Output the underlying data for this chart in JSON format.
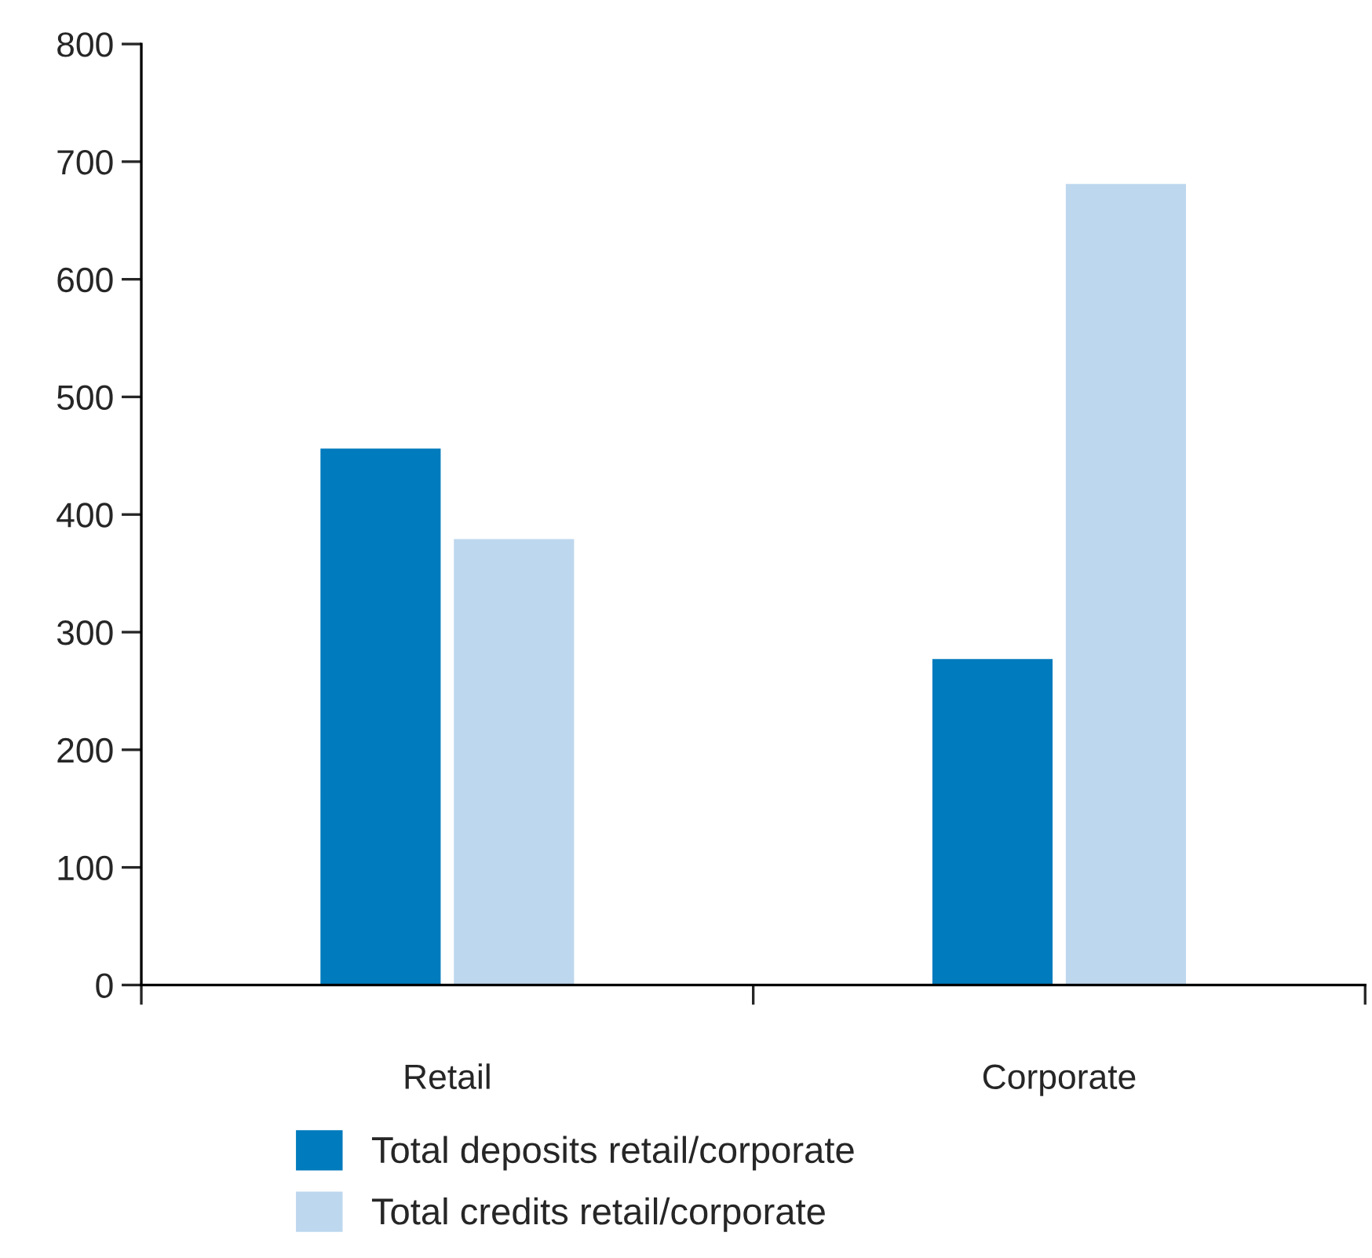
{
  "chart_data": {
    "type": "bar",
    "categories": [
      "Retail",
      "Corporate"
    ],
    "series": [
      {
        "name": "Total deposits retail/corporate",
        "color": "#007bbd",
        "values": [
          457,
          278
        ]
      },
      {
        "name": "Total credits retail/corporate",
        "color": "#bdd7ee",
        "values": [
          380,
          682
        ]
      }
    ],
    "ylim": [
      0,
      800
    ],
    "yticks": [
      0,
      100,
      200,
      300,
      400,
      500,
      600,
      700,
      800
    ],
    "grid": false,
    "legend": "bottom"
  }
}
